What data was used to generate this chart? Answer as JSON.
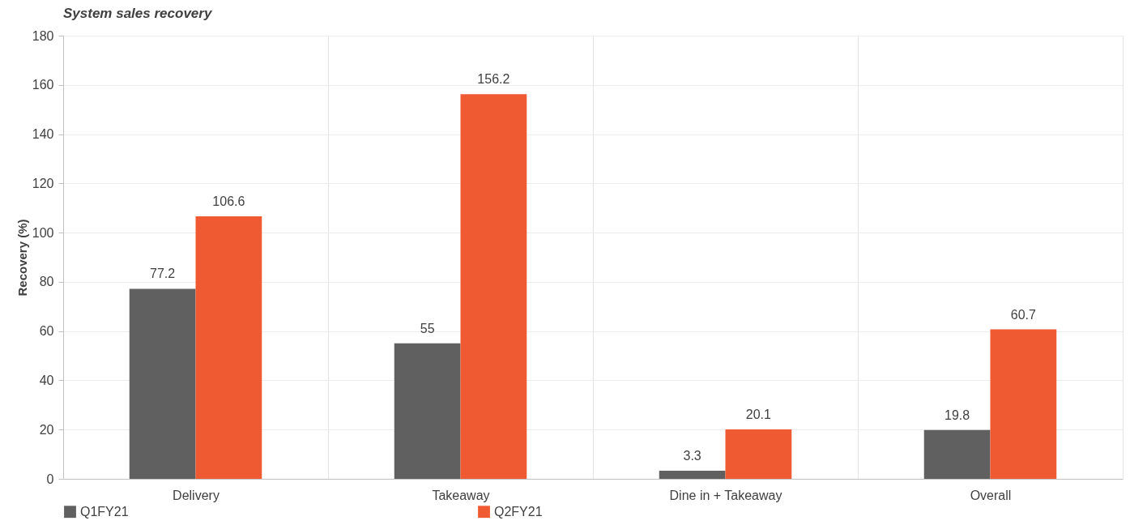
{
  "chart_data": {
    "type": "bar",
    "title": "System sales recovery",
    "ylabel": "Recovery (%)",
    "categories": [
      "Delivery",
      "Takeaway",
      "Dine in + Takeaway",
      "Overall"
    ],
    "series": [
      {
        "name": "Q1FY21",
        "color": "#606060",
        "values": [
          77.2,
          55,
          3.3,
          19.8
        ]
      },
      {
        "name": "Q2FY21",
        "color": "#f05a32",
        "values": [
          106.6,
          156.2,
          20.1,
          60.7
        ]
      }
    ],
    "ylim": [
      0,
      180
    ],
    "yticks": [
      0,
      20,
      40,
      60,
      80,
      100,
      120,
      140,
      160,
      180
    ],
    "grid": true,
    "legend": "bottom",
    "data_labels": true
  }
}
